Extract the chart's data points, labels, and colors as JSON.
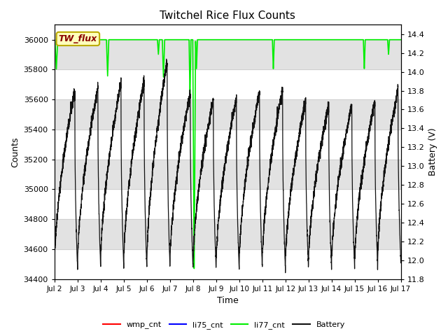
{
  "title": "Twitchel Rice Flux Counts",
  "xlabel": "Time",
  "ylabel_left": "Counts",
  "ylabel_right": "Battery (V)",
  "ylim_left": [
    34400,
    36100
  ],
  "ylim_right": [
    11.8,
    14.5
  ],
  "xtick_labels": [
    "Jul 2",
    "Jul 3",
    "Jul 4",
    "Jul 5",
    "Jul 6",
    "Jul 7",
    "Jul 8",
    "Jul 9",
    "Jul 10",
    "Jul 11",
    "Jul 12",
    "Jul 13",
    "Jul 14",
    "Jul 15",
    "Jul 16",
    "Jul 17"
  ],
  "annotation_box_text": "TW_flux",
  "annotation_box_facecolor": "#ffffbb",
  "annotation_box_edgecolor": "#bbaa00",
  "annotation_text_color": "#880000",
  "bg_band_color": "#e2e2e2",
  "li77_color": "#00ee00",
  "battery_color": "#111111",
  "wmp_color": "#ff0000",
  "li75_color": "#0000ff",
  "y_left_ticks": [
    34400,
    34600,
    34800,
    35000,
    35200,
    35400,
    35600,
    35800,
    36000
  ],
  "y_right_ticks": [
    11.8,
    12.0,
    12.2,
    12.4,
    12.6,
    12.8,
    13.0,
    13.2,
    13.4,
    13.6,
    13.8,
    14.0,
    14.2,
    14.4
  ],
  "band_ranges": [
    [
      34600,
      34800
    ],
    [
      35000,
      35200
    ],
    [
      35400,
      35600
    ],
    [
      35800,
      36000
    ]
  ],
  "figsize": [
    6.4,
    4.8
  ],
  "dpi": 100
}
